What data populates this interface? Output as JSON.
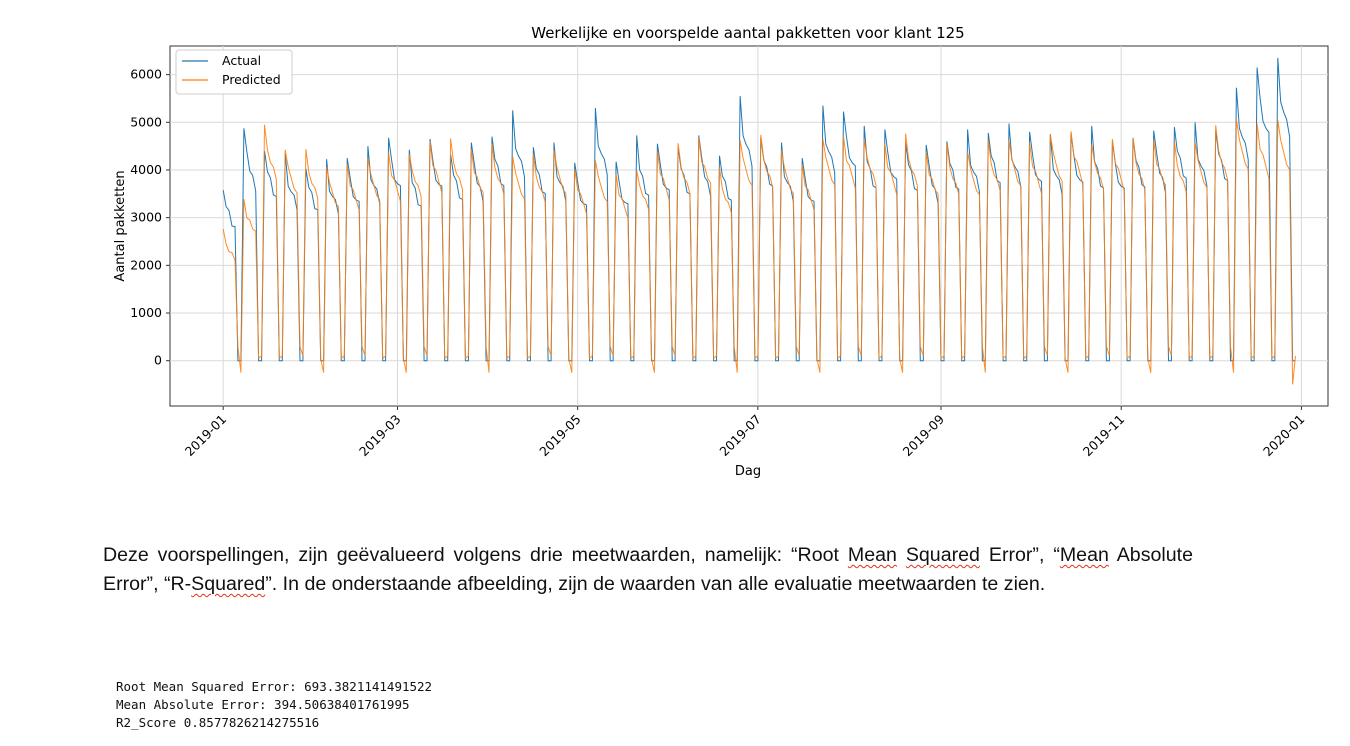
{
  "chart_data": {
    "type": "line",
    "title": "Werkelijke en voorspelde aantal pakketten voor klant 125",
    "xlabel": "Dag",
    "ylabel": "Aantal pakketten",
    "x_ticks": [
      "2019-01",
      "2019-03",
      "2019-05",
      "2019-07",
      "2019-09",
      "2019-11",
      "2020-01"
    ],
    "y_ticks": [
      0,
      1000,
      2000,
      3000,
      4000,
      5000,
      6000
    ],
    "xlim": [
      "2018-12-14",
      "2020-01-10"
    ],
    "ylim": [
      -950,
      6600
    ],
    "grid": true,
    "legend_position": "top-left",
    "series": [
      {
        "name": "Actual",
        "color": "#1f77b4"
      },
      {
        "name": "Predicted",
        "color": "#ff7f0e"
      }
    ],
    "weekly_pattern": {
      "start": "2019-01-01",
      "weeks": 52,
      "actual_weekday_peaks": [
        3700,
        4850,
        4500,
        4300,
        4100,
        4150,
        4300,
        4400,
        4700,
        4300,
        4650,
        4450,
        4550,
        4800,
        5200,
        4550,
        4500,
        4200,
        5200,
        4200,
        4600,
        4550,
        4600,
        4700,
        4400,
        5500,
        4750,
        4500,
        4300,
        5250,
        5250,
        4800,
        4850,
        4700,
        4500,
        4700,
        4800,
        4850,
        4900,
        4850,
        4650,
        4800,
        4800,
        4600,
        4800,
        4800,
        5000,
        4950,
        4900,
        5650,
        6200,
        6250
      ],
      "predicted_weekday_peaks": [
        2700,
        3400,
        4900,
        4450,
        4400,
        4100,
        4100,
        4300,
        4350,
        4400,
        4600,
        4600,
        4450,
        4500,
        4300,
        4300,
        4450,
        4000,
        4250,
        3900,
        4050,
        4400,
        4500,
        4700,
        4000,
        4650,
        4700,
        4450,
        4100,
        4700,
        4700,
        4700,
        4550,
        4700,
        4400,
        4500,
        4400,
        4600,
        4650,
        4550,
        4800,
        4800,
        4600,
        4650,
        4600,
        4650,
        4550,
        4600,
        4900,
        5100,
        4950,
        5100
      ],
      "actual_weekend": 0,
      "predicted_weekend_min": -500
    }
  },
  "paragraph": {
    "p1": "Deze voorspellingen, zijn geëvalueerd volgens drie meetwaarden, namelijk: “Root ",
    "w_mean": "Mean",
    "p2": " ",
    "w_squared": "Squared",
    "p3": " Error”, “",
    "w_mean2": "Mean",
    "p4": " Absolute Error”, “R-",
    "w_squared2": "Squared",
    "p5": "”. In de onderstaande afbeelding, zijn de waarden van alle evaluatie meetwaarden te zien."
  },
  "metrics": {
    "rmse": "Root Mean Squared Error: 693.3821141491522",
    "mae": "Mean Absolute Error: 394.50638401761995",
    "r2": "R2_Score 0.8577826214275516"
  }
}
